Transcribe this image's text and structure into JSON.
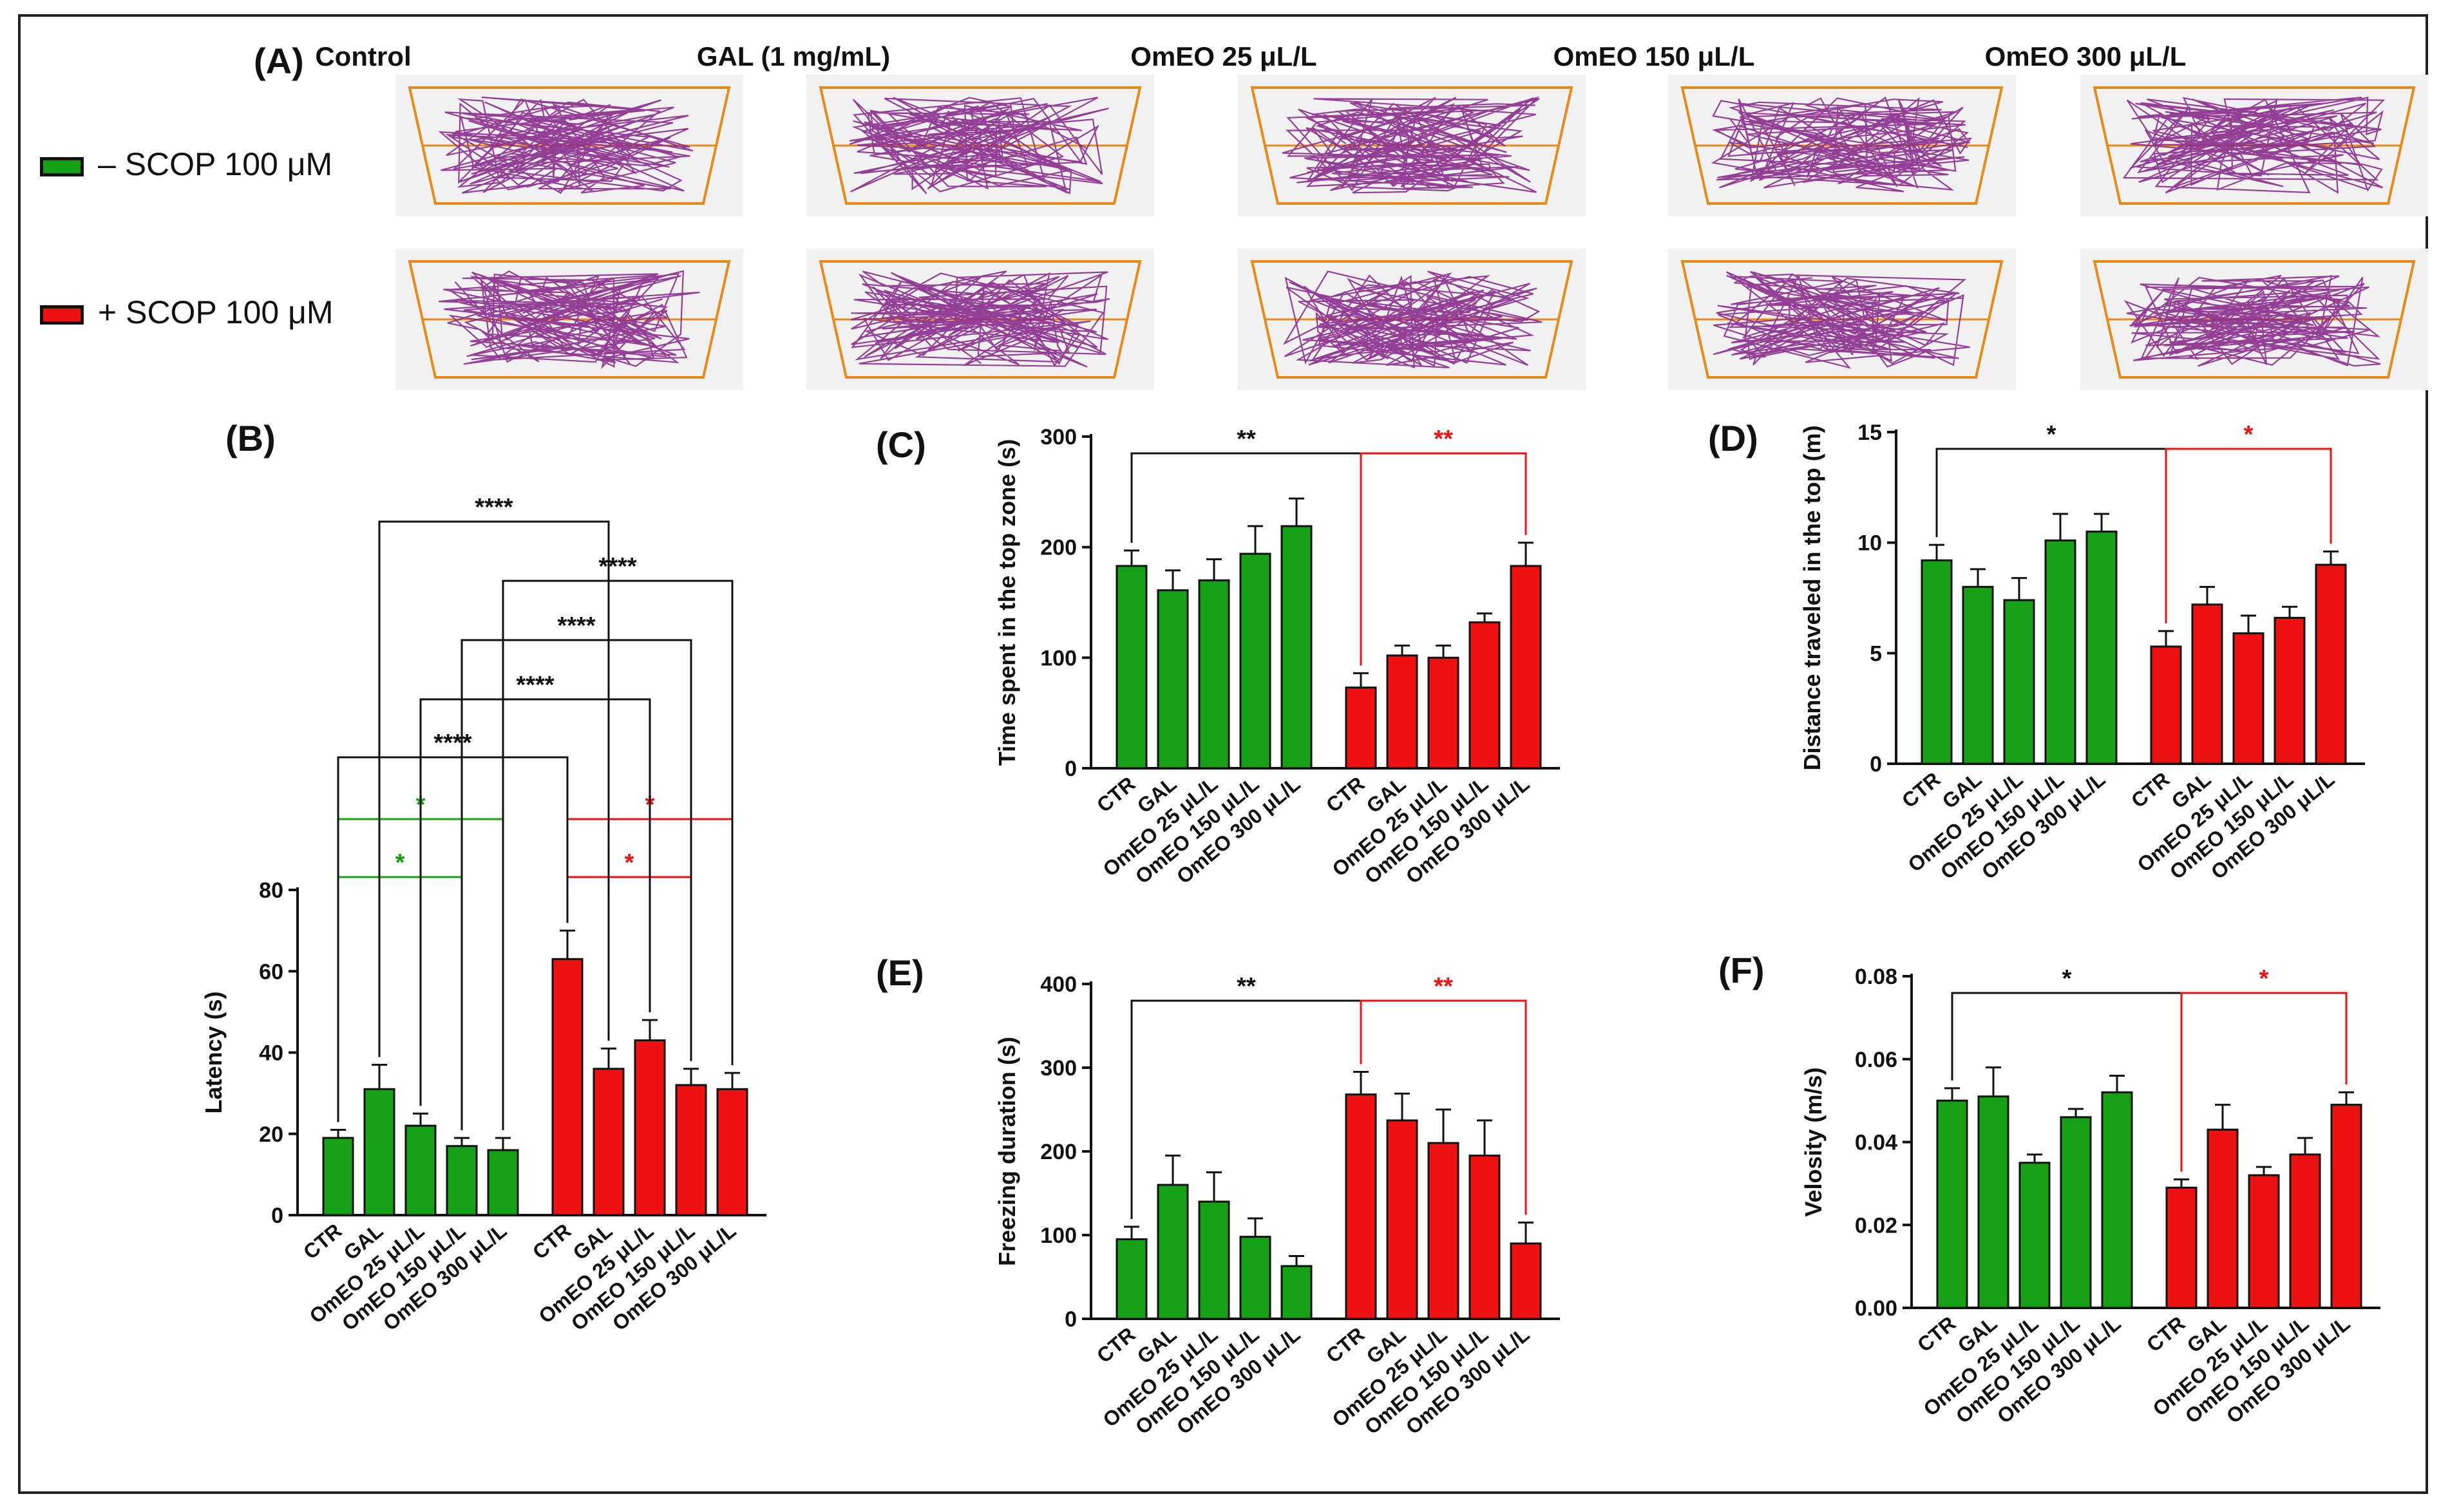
{
  "panel_labels": {
    "A": "(A)",
    "B": "(B)",
    "C": "(C)",
    "D": "(D)",
    "E": "(E)",
    "F": "(F)"
  },
  "tracking": {
    "column_titles": [
      "Control",
      "GAL (1 mg/mL)",
      "OmEO 25 μL/L",
      "OmEO 150 μL/L",
      "OmEO 300 μL/L"
    ],
    "legend": [
      {
        "label": "– SCOP 100 μM",
        "color": "#16a016"
      },
      {
        "label": "+ SCOP 100 μM",
        "color": "#ee1111"
      }
    ]
  },
  "colors": {
    "green": "#16a016",
    "red": "#ee1111",
    "axis": "#111111",
    "track": "#8a2b8c",
    "arena": "#e88a1a"
  },
  "chart_data": [
    {
      "id": "B",
      "type": "bar",
      "ylabel": "Latency (s)",
      "ylim": [
        0,
        80
      ],
      "yticks": [
        "0",
        "20",
        "40",
        "60",
        "80"
      ],
      "categories": [
        "CTR",
        "GAL",
        "OmEO 25 μL/L",
        "OmEO 150 μL/L",
        "OmEO 300 μL/L"
      ],
      "series": [
        {
          "name": "– SCOP 100 μM",
          "color": "green",
          "values": [
            19,
            31,
            22,
            17,
            16
          ],
          "errors": [
            2,
            6,
            3,
            2,
            3
          ]
        },
        {
          "name": "+ SCOP 100 μM",
          "color": "red",
          "values": [
            63,
            36,
            43,
            32,
            31
          ],
          "errors": [
            7,
            5,
            5,
            4,
            4
          ]
        }
      ],
      "brackets": [
        {
          "from": 0,
          "to": 3,
          "label": "*",
          "color": "green"
        },
        {
          "from": 0,
          "to": 4,
          "label": "*",
          "color": "green"
        },
        {
          "from": 5,
          "to": 8,
          "label": "*",
          "color": "red"
        },
        {
          "from": 5,
          "to": 9,
          "label": "*",
          "color": "red"
        },
        {
          "from": 0,
          "to": 5,
          "label": "****",
          "color": "axis"
        },
        {
          "from": 2,
          "to": 7,
          "label": "****",
          "color": "axis"
        },
        {
          "from": 3,
          "to": 8,
          "label": "****",
          "color": "axis"
        },
        {
          "from": 4,
          "to": 9,
          "label": "****",
          "color": "axis"
        },
        {
          "from": 1,
          "to": 6,
          "label": "****",
          "color": "axis"
        }
      ]
    },
    {
      "id": "C",
      "type": "bar",
      "ylabel": "Time spent in the top zone  (s)",
      "ylim": [
        0,
        300
      ],
      "yticks": [
        "0",
        "100",
        "200",
        "300"
      ],
      "categories": [
        "CTR",
        "GAL",
        "OmEO 25 μL/L",
        "OmEO 150 μL/L",
        "OmEO 300 μL/L"
      ],
      "series": [
        {
          "name": "– SCOP 100 μM",
          "color": "green",
          "values": [
            183,
            161,
            170,
            194,
            219
          ],
          "errors": [
            14,
            18,
            19,
            25,
            25
          ]
        },
        {
          "name": "+ SCOP 100 μM",
          "color": "red",
          "values": [
            73,
            102,
            100,
            132,
            183
          ],
          "errors": [
            13,
            9,
            11,
            8,
            21
          ]
        }
      ],
      "brackets": [
        {
          "from": 0,
          "to": 5,
          "label": "**",
          "color": "axis"
        },
        {
          "from": 5,
          "to": 9,
          "label": "**",
          "color": "red"
        }
      ]
    },
    {
      "id": "D",
      "type": "bar",
      "ylabel": "Distance traveled in the top (m)",
      "ylim": [
        0,
        15
      ],
      "yticks": [
        "0",
        "5",
        "10",
        "15"
      ],
      "categories": [
        "CTR",
        "GAL",
        "OmEO 25 μL/L",
        "OmEO 150 μL/L",
        "OmEO 300 μL/L"
      ],
      "series": [
        {
          "name": "– SCOP 100 μM",
          "color": "green",
          "values": [
            9.2,
            8.0,
            7.4,
            10.1,
            10.5
          ],
          "errors": [
            0.7,
            0.8,
            1.0,
            1.2,
            0.8
          ]
        },
        {
          "name": "+ SCOP 100 μM",
          "color": "red",
          "values": [
            5.3,
            7.2,
            5.9,
            6.6,
            9.0
          ],
          "errors": [
            0.7,
            0.8,
            0.8,
            0.5,
            0.6
          ]
        }
      ],
      "brackets": [
        {
          "from": 0,
          "to": 5,
          "label": "*",
          "color": "axis"
        },
        {
          "from": 5,
          "to": 9,
          "label": "*",
          "color": "red"
        }
      ]
    },
    {
      "id": "E",
      "type": "bar",
      "ylabel": "Freezing duration  (s)",
      "ylim": [
        0,
        400
      ],
      "yticks": [
        "0",
        "100",
        "200",
        "300",
        "400"
      ],
      "categories": [
        "CTR",
        "GAL",
        "OmEO 25 μL/L",
        "OmEO 150 μL/L",
        "OmEO 300 μL/L"
      ],
      "series": [
        {
          "name": "– SCOP 100 μM",
          "color": "green",
          "values": [
            95,
            160,
            140,
            98,
            63
          ],
          "errors": [
            15,
            35,
            35,
            22,
            12
          ]
        },
        {
          "name": "+ SCOP 100 μM",
          "color": "red",
          "values": [
            268,
            237,
            210,
            195,
            90
          ],
          "errors": [
            27,
            32,
            40,
            42,
            25
          ]
        }
      ],
      "brackets": [
        {
          "from": 0,
          "to": 5,
          "label": "**",
          "color": "axis"
        },
        {
          "from": 5,
          "to": 9,
          "label": "**",
          "color": "red"
        }
      ]
    },
    {
      "id": "F",
      "type": "bar",
      "ylabel": "Velosity  (m/s)",
      "ylim": [
        0,
        0.08
      ],
      "yticks": [
        "0.00",
        "0.02",
        "0.04",
        "0.06",
        "0.08"
      ],
      "categories": [
        "CTR",
        "GAL",
        "OmEO 25 μL/L",
        "OmEO 150 μL/L",
        "OmEO 300 μL/L"
      ],
      "series": [
        {
          "name": "– SCOP 100 μM",
          "color": "green",
          "values": [
            0.05,
            0.051,
            0.035,
            0.046,
            0.052
          ],
          "errors": [
            0.003,
            0.007,
            0.002,
            0.002,
            0.004
          ]
        },
        {
          "name": "+ SCOP 100 μM",
          "color": "red",
          "values": [
            0.029,
            0.043,
            0.032,
            0.037,
            0.049
          ],
          "errors": [
            0.002,
            0.006,
            0.002,
            0.004,
            0.003
          ]
        }
      ],
      "brackets": [
        {
          "from": 0,
          "to": 5,
          "label": "*",
          "color": "axis"
        },
        {
          "from": 5,
          "to": 9,
          "label": "*",
          "color": "red"
        }
      ]
    }
  ]
}
